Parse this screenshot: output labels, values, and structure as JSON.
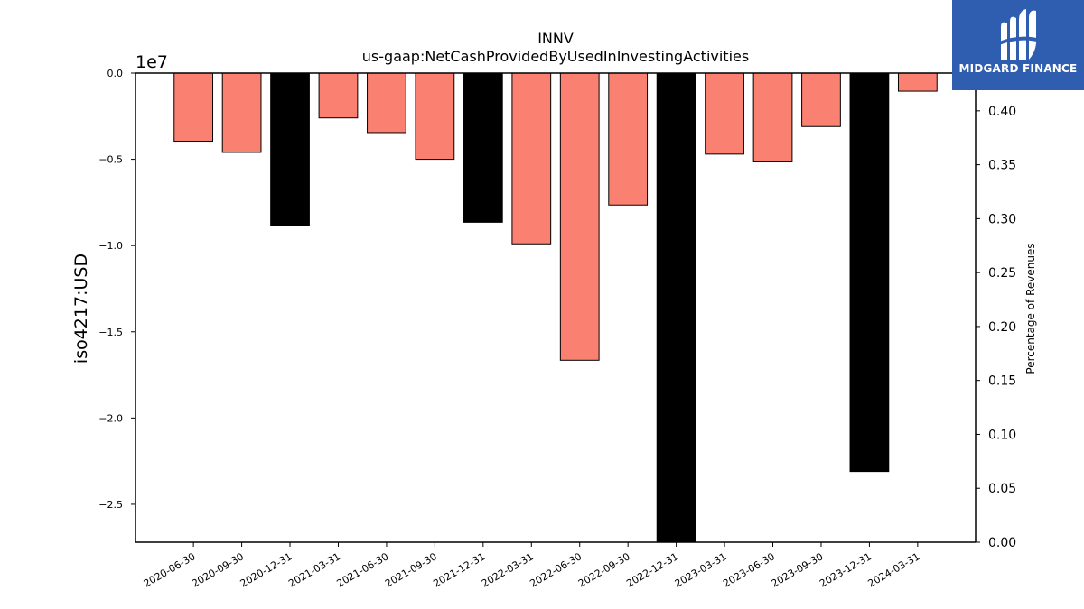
{
  "chart_data": {
    "type": "bar",
    "title": "INNV",
    "subtitle": "us-gaap:NetCashProvidedByUsedInInvestingActivities",
    "ylabel": "iso4217:USD",
    "y_offset_label": "1e7",
    "y2label": "Percentage of Revenues",
    "categories": [
      "2020-06-30",
      "2020-09-30",
      "2020-12-31",
      "2021-03-31",
      "2021-06-30",
      "2021-09-30",
      "2021-12-31",
      "2022-03-31",
      "2022-06-30",
      "2022-09-30",
      "2022-12-31",
      "2023-03-31",
      "2023-06-30",
      "2023-09-30",
      "2023-12-31",
      "2024-03-31"
    ],
    "values": [
      -3950000,
      -4600000,
      -8850000,
      -2600000,
      -3450000,
      -5000000,
      -8650000,
      -9900000,
      -16650000,
      -7650000,
      -27500000,
      -4700000,
      -5150000,
      -3100000,
      -23100000,
      -1050000
    ],
    "bar_kind": [
      "quarter",
      "quarter",
      "annual",
      "quarter",
      "quarter",
      "quarter",
      "annual",
      "quarter",
      "quarter",
      "quarter",
      "annual",
      "quarter",
      "quarter",
      "quarter",
      "annual",
      "quarter"
    ],
    "ylim": [
      -27200000,
      0
    ],
    "y_ticks": [
      0,
      -5000000,
      -10000000,
      -15000000,
      -20000000,
      -25000000
    ],
    "y_tick_labels": [
      "0.0",
      "−0.5",
      "−1.0",
      "−1.5",
      "−2.0",
      "−2.5"
    ],
    "y2lim": [
      0,
      0.435
    ],
    "y2_ticks": [
      0.0,
      0.05,
      0.1,
      0.15,
      0.2,
      0.25,
      0.3,
      0.35,
      0.4
    ],
    "y2_tick_labels": [
      "0.00",
      "0.05",
      "0.10",
      "0.15",
      "0.20",
      "0.25",
      "0.30",
      "0.35",
      "0.40"
    ],
    "grid": false,
    "colors": {
      "quarter": "#fa8072",
      "annual": "#000000",
      "edge": "#000000"
    }
  },
  "logo": {
    "text": "MIDGARD FINANCE",
    "icon": "midgard-logo-icon"
  }
}
